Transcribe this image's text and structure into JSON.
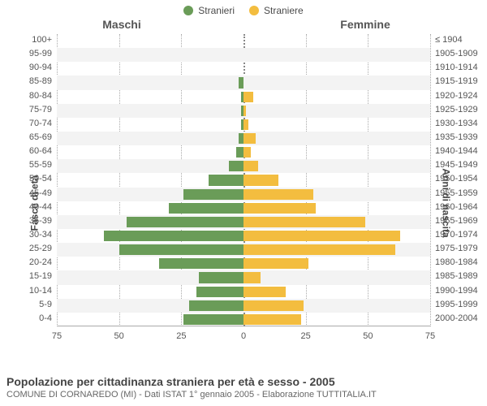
{
  "legend": {
    "male": {
      "label": "Stranieri",
      "color": "#6a9c58"
    },
    "female": {
      "label": "Straniere",
      "color": "#f3bd3f"
    }
  },
  "section_titles": {
    "left": "Maschi",
    "right": "Femmine"
  },
  "axis_titles": {
    "left": "Fasce di età",
    "right": "Anni di nascita"
  },
  "chart": {
    "type": "population-pyramid",
    "xmax": 75,
    "xticks": [
      75,
      50,
      25,
      0,
      25,
      50,
      75
    ],
    "xtick_labels": [
      "75",
      "50",
      "25",
      "0",
      "25",
      "50",
      "75"
    ],
    "grid_color": "#aaaaaa",
    "stripe_color": "#f3f3f3",
    "left_color": "#6a9c58",
    "right_color": "#f3bd3f",
    "label_fontsize": 11,
    "rows": [
      {
        "age": "100+",
        "birth": "≤ 1904",
        "m": 0,
        "f": 0
      },
      {
        "age": "95-99",
        "birth": "1905-1909",
        "m": 0,
        "f": 0
      },
      {
        "age": "90-94",
        "birth": "1910-1914",
        "m": 0,
        "f": 0
      },
      {
        "age": "85-89",
        "birth": "1915-1919",
        "m": 2,
        "f": 0
      },
      {
        "age": "80-84",
        "birth": "1920-1924",
        "m": 1,
        "f": 4
      },
      {
        "age": "75-79",
        "birth": "1925-1929",
        "m": 1,
        "f": 1
      },
      {
        "age": "70-74",
        "birth": "1930-1934",
        "m": 1,
        "f": 2
      },
      {
        "age": "65-69",
        "birth": "1935-1939",
        "m": 2,
        "f": 5
      },
      {
        "age": "60-64",
        "birth": "1940-1944",
        "m": 3,
        "f": 3
      },
      {
        "age": "55-59",
        "birth": "1945-1949",
        "m": 6,
        "f": 6
      },
      {
        "age": "50-54",
        "birth": "1950-1954",
        "m": 14,
        "f": 14
      },
      {
        "age": "45-49",
        "birth": "1955-1959",
        "m": 24,
        "f": 28
      },
      {
        "age": "40-44",
        "birth": "1960-1964",
        "m": 30,
        "f": 29
      },
      {
        "age": "35-39",
        "birth": "1965-1969",
        "m": 47,
        "f": 49
      },
      {
        "age": "30-34",
        "birth": "1970-1974",
        "m": 56,
        "f": 63
      },
      {
        "age": "25-29",
        "birth": "1975-1979",
        "m": 50,
        "f": 61
      },
      {
        "age": "20-24",
        "birth": "1980-1984",
        "m": 34,
        "f": 26
      },
      {
        "age": "15-19",
        "birth": "1985-1989",
        "m": 18,
        "f": 7
      },
      {
        "age": "10-14",
        "birth": "1990-1994",
        "m": 19,
        "f": 17
      },
      {
        "age": "5-9",
        "birth": "1995-1999",
        "m": 22,
        "f": 24
      },
      {
        "age": "0-4",
        "birth": "2000-2004",
        "m": 24,
        "f": 23
      }
    ]
  },
  "footer": {
    "title": "Popolazione per cittadinanza straniera per età e sesso - 2005",
    "subtitle": "COMUNE DI CORNAREDO (MI) - Dati ISTAT 1° gennaio 2005 - Elaborazione TUTTITALIA.IT"
  }
}
